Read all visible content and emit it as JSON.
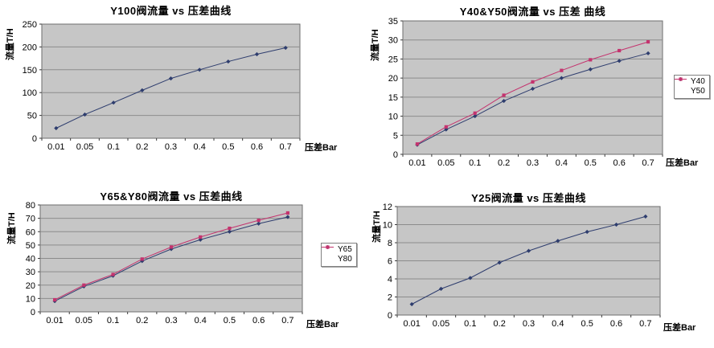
{
  "page": {
    "background": "#ffffff"
  },
  "colors": {
    "plot_bg": "#c6c6c6",
    "gridline": "#8c8c8c",
    "plot_border": "#6e6e6e",
    "tick": "#3a3a3a",
    "text": "#000000",
    "legend_border": "#808080",
    "navy": "#2e3d6e",
    "pink": "#c4336e"
  },
  "chart_data": [
    {
      "type": "line",
      "title": "Y100阀流量 vs 压差曲线",
      "ylabel": "流量T/H",
      "xlabel": "压差Bar",
      "categories": [
        "0.01",
        "0.05",
        "0.1",
        "0.2",
        "0.3",
        "0.4",
        "0.5",
        "0.6",
        "0.7"
      ],
      "ylim": [
        0,
        250
      ],
      "ytick_step": 50,
      "grid": true,
      "legend": false,
      "series": [
        {
          "name": "Y100",
          "color": "#2e3d6e",
          "marker": "diamond",
          "values": [
            22,
            52,
            78,
            105,
            131,
            150,
            168,
            184,
            198
          ]
        }
      ]
    },
    {
      "type": "line",
      "title": "Y40&Y50阀流量 vs 压差 曲线",
      "ylabel": "流量T/H",
      "xlabel": "压差Bar",
      "categories": [
        "0.01",
        "0.05",
        "0.1",
        "0.2",
        "0.3",
        "0.4",
        "0.5",
        "0.6",
        "0.7"
      ],
      "ylim": [
        0,
        35
      ],
      "ytick_step": 5,
      "grid": true,
      "legend": true,
      "legend_position": "right",
      "series": [
        {
          "name": "Y40",
          "color": "#2e3d6e",
          "marker": "diamond",
          "values": [
            2.5,
            6.5,
            10,
            14,
            17.2,
            20,
            22.3,
            24.5,
            26.5
          ]
        },
        {
          "name": "Y50",
          "color": "#c4336e",
          "marker": "square",
          "values": [
            2.7,
            7.2,
            10.8,
            15.5,
            19,
            22,
            24.8,
            27.2,
            29.5
          ]
        }
      ]
    },
    {
      "type": "line",
      "title": "Y65&Y80阀流量 vs 压差曲线",
      "ylabel": "流量T/H",
      "xlabel": "压差Bar",
      "categories": [
        "0.01",
        "0.05",
        "0.1",
        "0.2",
        "0.3",
        "0.4",
        "0.5",
        "0.6",
        "0.7"
      ],
      "ylim": [
        0,
        80
      ],
      "ytick_step": 10,
      "grid": true,
      "legend": true,
      "legend_position": "right",
      "series": [
        {
          "name": "Y65",
          "color": "#2e3d6e",
          "marker": "diamond",
          "values": [
            8,
            19,
            27,
            38,
            47,
            54,
            60,
            66,
            71
          ]
        },
        {
          "name": "Y80",
          "color": "#c4336e",
          "marker": "square",
          "values": [
            9,
            20,
            28,
            39.5,
            48.5,
            56,
            62.5,
            68.5,
            74
          ]
        }
      ]
    },
    {
      "type": "line",
      "title": "Y25阀流量 vs 压差曲线",
      "ylabel": "流量T/H",
      "xlabel": "压差Bar",
      "categories": [
        "0.01",
        "0.05",
        "0.1",
        "0.2",
        "0.3",
        "0.4",
        "0.5",
        "0.6",
        "0.7"
      ],
      "ylim": [
        0,
        12
      ],
      "ytick_step": 2,
      "grid": true,
      "legend": false,
      "series": [
        {
          "name": "Y25",
          "color": "#2e3d6e",
          "marker": "diamond",
          "values": [
            1.2,
            2.9,
            4.1,
            5.8,
            7.1,
            8.2,
            9.2,
            10,
            10.9
          ]
        }
      ]
    }
  ]
}
